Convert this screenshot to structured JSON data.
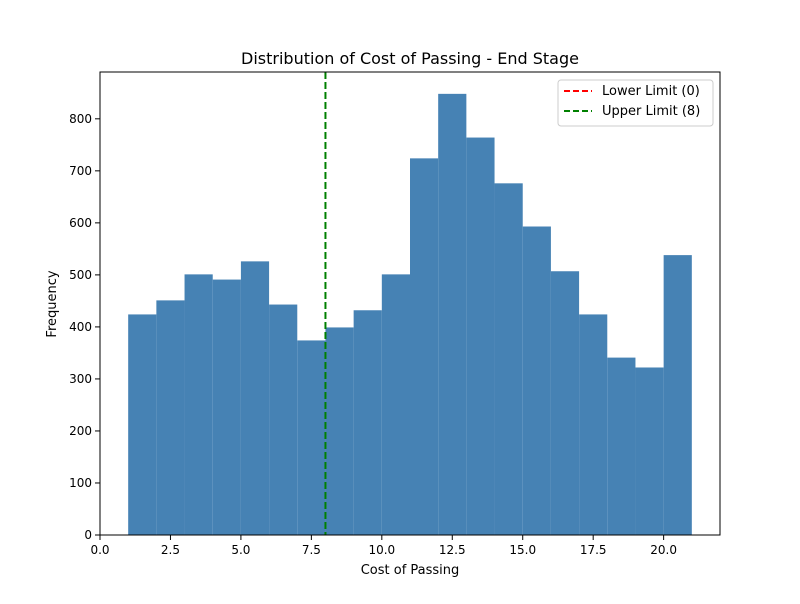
{
  "chart_data": {
    "type": "bar",
    "title": "Distribution of Cost of Passing - End Stage",
    "xlabel": "Cost of Passing",
    "ylabel": "Frequency",
    "xlim": [
      0,
      22
    ],
    "ylim": [
      0,
      890
    ],
    "x_ticks": [
      0,
      2.5,
      5,
      7.5,
      10,
      12.5,
      15,
      17.5,
      20
    ],
    "x_tick_labels": [
      "0.0",
      "2.5",
      "5.0",
      "7.5",
      "10.0",
      "12.5",
      "15.0",
      "17.5",
      "20.0"
    ],
    "y_ticks": [
      0,
      100,
      200,
      300,
      400,
      500,
      600,
      700,
      800
    ],
    "y_tick_labels": [
      "0",
      "100",
      "200",
      "300",
      "400",
      "500",
      "600",
      "700",
      "800"
    ],
    "grid": false,
    "legend_position": "top-right",
    "bins": [
      {
        "x0": 1,
        "x1": 2,
        "value": 424
      },
      {
        "x0": 2,
        "x1": 3,
        "value": 451
      },
      {
        "x0": 3,
        "x1": 4,
        "value": 501
      },
      {
        "x0": 4,
        "x1": 5,
        "value": 491
      },
      {
        "x0": 5,
        "x1": 6,
        "value": 526
      },
      {
        "x0": 6,
        "x1": 7,
        "value": 443
      },
      {
        "x0": 7,
        "x1": 8,
        "value": 374
      },
      {
        "x0": 8,
        "x1": 9,
        "value": 399
      },
      {
        "x0": 9,
        "x1": 10,
        "value": 432
      },
      {
        "x0": 10,
        "x1": 11,
        "value": 501
      },
      {
        "x0": 11,
        "x1": 12,
        "value": 724
      },
      {
        "x0": 12,
        "x1": 13,
        "value": 848
      },
      {
        "x0": 13,
        "x1": 14,
        "value": 764
      },
      {
        "x0": 14,
        "x1": 15,
        "value": 676
      },
      {
        "x0": 15,
        "x1": 16,
        "value": 593
      },
      {
        "x0": 16,
        "x1": 17,
        "value": 507
      },
      {
        "x0": 17,
        "x1": 18,
        "value": 424
      },
      {
        "x0": 18,
        "x1": 19,
        "value": 341
      },
      {
        "x0": 19,
        "x1": 20,
        "value": 322
      },
      {
        "x0": 20,
        "x1": 21,
        "value": 538
      }
    ],
    "bar_color": "#4682b4",
    "reference_lines": [
      {
        "name": "Lower Limit (0)",
        "x": 0,
        "color": "#ff0000",
        "style": "dashed"
      },
      {
        "name": "Upper Limit (8)",
        "x": 8,
        "color": "#008000",
        "style": "dashed"
      }
    ]
  }
}
